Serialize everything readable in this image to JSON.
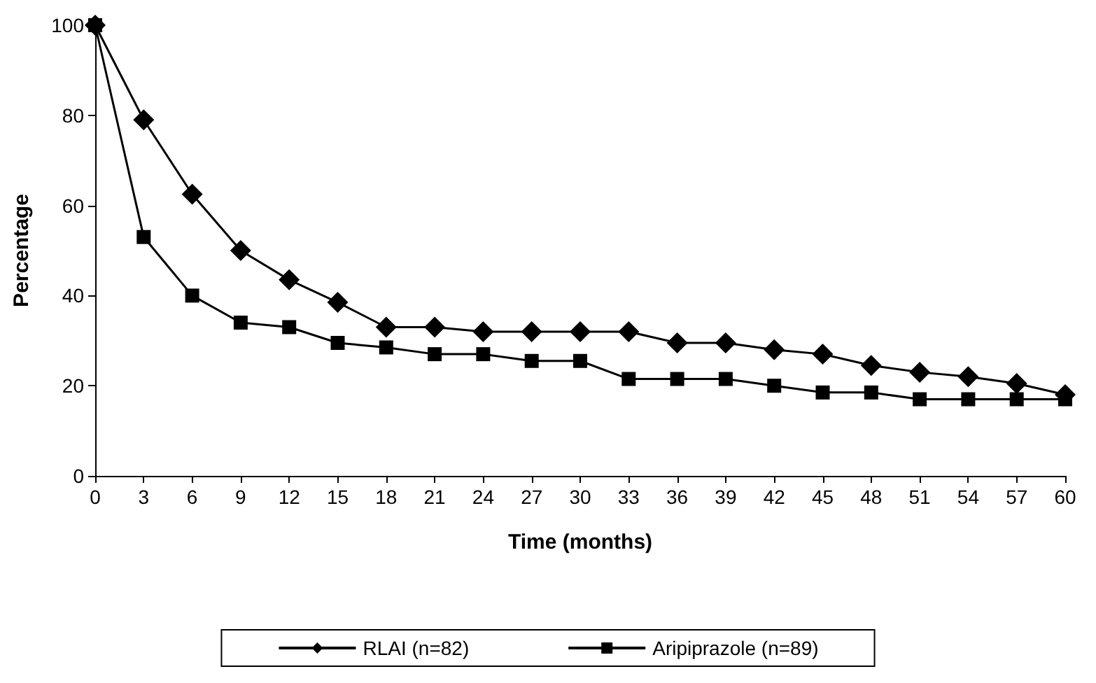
{
  "chart_data": {
    "type": "line",
    "xlabel": "Time (months)",
    "ylabel": "Percentage",
    "x": [
      0,
      3,
      6,
      9,
      12,
      15,
      18,
      21,
      24,
      27,
      30,
      33,
      36,
      39,
      42,
      45,
      48,
      51,
      54,
      57,
      60
    ],
    "xlim": [
      0,
      60
    ],
    "xticks": [
      0,
      3,
      6,
      9,
      12,
      15,
      18,
      21,
      24,
      27,
      30,
      33,
      36,
      39,
      42,
      45,
      48,
      51,
      54,
      57,
      60
    ],
    "ylim": [
      0,
      100
    ],
    "yticks": [
      0,
      20,
      40,
      60,
      80,
      100
    ],
    "grid": false,
    "legend": "bottom",
    "line_style": "solid",
    "series": [
      {
        "name": "RLAI (n=82)",
        "color": "#000000",
        "marker": "diamond",
        "values": [
          100,
          79,
          62.5,
          50,
          43.5,
          38.5,
          33,
          33,
          32,
          32,
          32,
          32,
          29.5,
          29.5,
          28,
          27,
          24.5,
          23,
          22,
          20.5,
          18
        ]
      },
      {
        "name": "Aripiprazole (n=89)",
        "color": "#000000",
        "marker": "square",
        "values": [
          100,
          53,
          40,
          34,
          33,
          29.5,
          28.5,
          27,
          27,
          25.5,
          25.5,
          21.5,
          21.5,
          21.5,
          20,
          18.5,
          18.5,
          17,
          17,
          17,
          17
        ]
      }
    ]
  }
}
